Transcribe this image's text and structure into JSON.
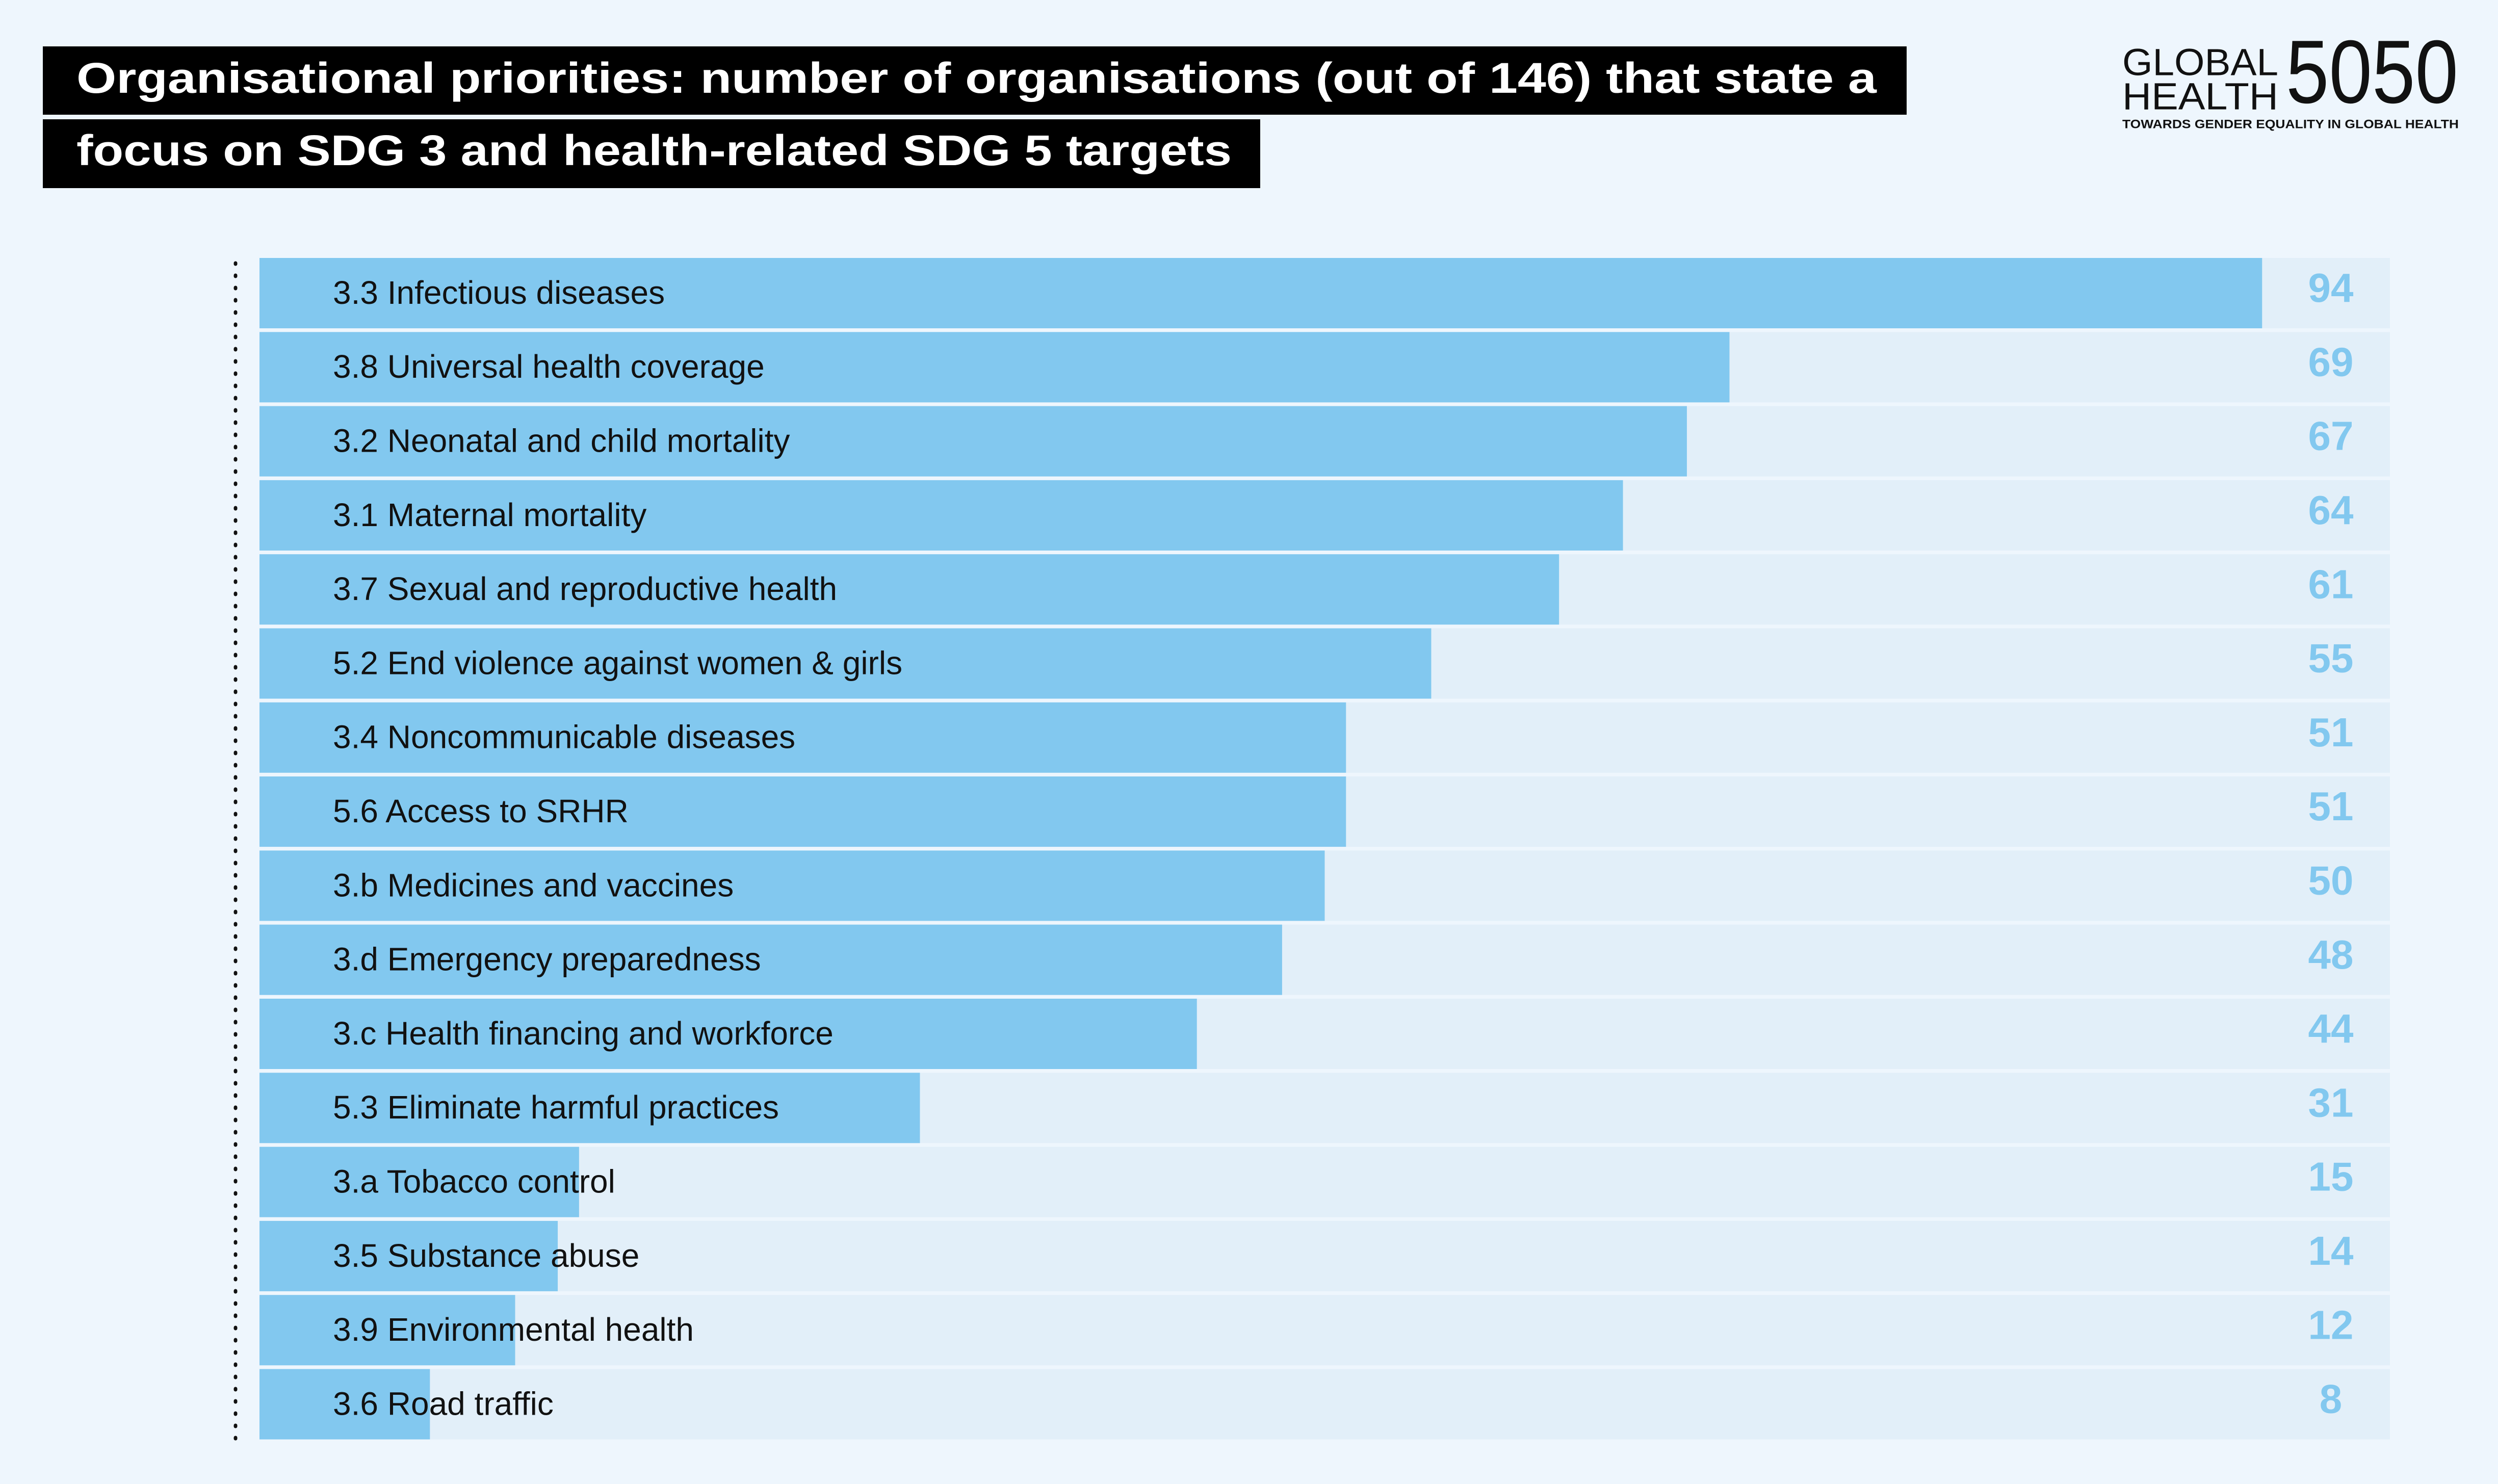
{
  "chart_data": {
    "type": "bar",
    "orientation": "horizontal",
    "title_lines": [
      "Organisational priorities: number of organisations (out of 146) that state a",
      "focus on SDG 3 and health-related SDG 5 targets"
    ],
    "categories": [
      "3.3 Infectious diseases",
      "3.8 Universal health coverage",
      "3.2 Neonatal and child mortality",
      "3.1 Maternal mortality",
      "3.7 Sexual and reproductive health",
      "5.2 End violence against women & girls",
      "3.4 Noncommunicable diseases",
      "5.6 Access to SRHR",
      "3.b Medicines and vaccines",
      "3.d Emergency preparedness",
      "3.c Health financing and workforce",
      "5.3 Eliminate harmful practices",
      "3.a Tobacco control",
      "3.5 Substance abuse",
      "3.9 Environmental health",
      "3.6 Road traffic"
    ],
    "values": [
      94,
      69,
      67,
      64,
      61,
      55,
      51,
      51,
      50,
      48,
      44,
      31,
      15,
      14,
      12,
      8
    ],
    "color": "#82c8ef",
    "track_color": "#e2eff9",
    "xlim": [
      0,
      100
    ]
  },
  "logo": {
    "name_lines": [
      "GLOBAL",
      "HEALTH"
    ],
    "number": "5050",
    "tagline": "TOWARDS GENDER EQUALITY IN GLOBAL HEALTH"
  }
}
